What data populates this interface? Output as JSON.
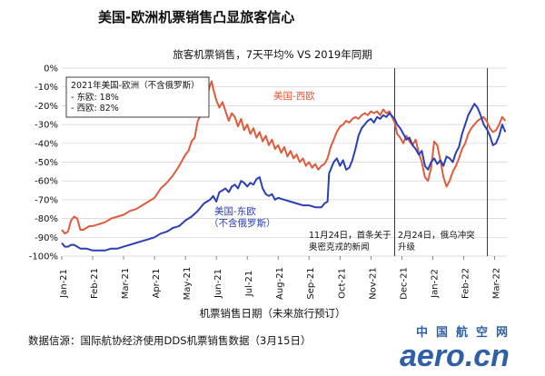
{
  "header": {
    "title": "美国-欧洲机票销售凸显旅客信心",
    "subtitle": "旅客机票销售，7天平均% VS 2019年同期"
  },
  "axis": {
    "xlabel": "机票销售日期（未来旅行预订）"
  },
  "legend_box": {
    "title": "2021年美国-欧洲（不含俄罗斯）",
    "lines": [
      "- 东欧:  18%",
      "- 西欧:  82%"
    ]
  },
  "annotations": {
    "west_label": "美国-西欧",
    "east_label_1": "美国-东欧",
    "east_label_2": "（不含俄罗斯）",
    "nov24_1": "11月24日，首条关于",
    "nov24_2": "奥密克戎的新闻",
    "feb24_1": "2月24日，俄乌冲突",
    "feb24_2": "升级"
  },
  "footer": {
    "source": "数据信源：国际航协经济使用DDS机票销售数据（3月15日）"
  },
  "logo": {
    "cn": "中国航空网",
    "en": "aero.cn"
  },
  "colors": {
    "west": "#e05a3c",
    "east": "#2b3fb5",
    "grid": "#d0d0d0",
    "event_line": "#333333"
  },
  "chart_data": {
    "type": "line",
    "x_tick_labels": [
      "Jan-21",
      "Feb-21",
      "Mar-21",
      "Apr-21",
      "May-21",
      "Jun-21",
      "Jul-21",
      "Aug-21",
      "Sep-21",
      "Oct-21",
      "Nov-21",
      "Dec-21",
      "Jan-22",
      "Feb-22",
      "Mar-22"
    ],
    "y_tick_labels": [
      "0%",
      "-10%",
      "-20%",
      "-30%",
      "-40%",
      "-50%",
      "-60%",
      "-70%",
      "-80%",
      "-90%",
      "-100%"
    ],
    "ylim": [
      -100,
      0
    ],
    "x_range_months": [
      0,
      14.4
    ],
    "event_lines_month": [
      10.77,
      13.77
    ],
    "series": [
      {
        "name": "美国-西欧",
        "color": "#e05a3c",
        "points": [
          [
            0.0,
            -86
          ],
          [
            0.1,
            -88
          ],
          [
            0.2,
            -87
          ],
          [
            0.3,
            -81
          ],
          [
            0.4,
            -79
          ],
          [
            0.5,
            -80
          ],
          [
            0.6,
            -86
          ],
          [
            0.7,
            -86
          ],
          [
            0.8,
            -85
          ],
          [
            0.9,
            -84
          ],
          [
            1.0,
            -84
          ],
          [
            1.2,
            -83
          ],
          [
            1.4,
            -82
          ],
          [
            1.6,
            -80
          ],
          [
            1.8,
            -79
          ],
          [
            2.0,
            -78
          ],
          [
            2.2,
            -76
          ],
          [
            2.4,
            -75
          ],
          [
            2.6,
            -73
          ],
          [
            2.8,
            -71
          ],
          [
            3.0,
            -69
          ],
          [
            3.2,
            -64
          ],
          [
            3.4,
            -61
          ],
          [
            3.6,
            -57
          ],
          [
            3.8,
            -52
          ],
          [
            4.0,
            -46
          ],
          [
            4.1,
            -44
          ],
          [
            4.2,
            -39
          ],
          [
            4.3,
            -37
          ],
          [
            4.4,
            -28
          ],
          [
            4.5,
            -25
          ],
          [
            4.6,
            -20
          ],
          [
            4.7,
            -15
          ],
          [
            4.8,
            -9
          ],
          [
            4.85,
            -7
          ],
          [
            4.9,
            -11
          ],
          [
            5.0,
            -17
          ],
          [
            5.1,
            -21
          ],
          [
            5.2,
            -18
          ],
          [
            5.3,
            -23
          ],
          [
            5.4,
            -28
          ],
          [
            5.5,
            -24
          ],
          [
            5.6,
            -26
          ],
          [
            5.7,
            -31
          ],
          [
            5.8,
            -27
          ],
          [
            5.9,
            -33
          ],
          [
            6.0,
            -30
          ],
          [
            6.1,
            -35
          ],
          [
            6.2,
            -32
          ],
          [
            6.3,
            -37
          ],
          [
            6.4,
            -34
          ],
          [
            6.5,
            -39
          ],
          [
            6.6,
            -36
          ],
          [
            6.7,
            -41
          ],
          [
            6.8,
            -38
          ],
          [
            6.9,
            -43
          ],
          [
            7.0,
            -41
          ],
          [
            7.1,
            -45
          ],
          [
            7.2,
            -42
          ],
          [
            7.3,
            -47
          ],
          [
            7.4,
            -44
          ],
          [
            7.5,
            -48
          ],
          [
            7.6,
            -46
          ],
          [
            7.7,
            -50
          ],
          [
            7.8,
            -48
          ],
          [
            7.9,
            -52
          ],
          [
            8.0,
            -50
          ],
          [
            8.1,
            -53
          ],
          [
            8.2,
            -51
          ],
          [
            8.3,
            -54
          ],
          [
            8.4,
            -52
          ],
          [
            8.5,
            -51
          ],
          [
            8.6,
            -48
          ],
          [
            8.7,
            -42
          ],
          [
            8.8,
            -38
          ],
          [
            8.9,
            -34
          ],
          [
            9.0,
            -31
          ],
          [
            9.1,
            -30
          ],
          [
            9.2,
            -28
          ],
          [
            9.3,
            -29
          ],
          [
            9.4,
            -27
          ],
          [
            9.5,
            -26
          ],
          [
            9.6,
            -27
          ],
          [
            9.7,
            -25
          ],
          [
            9.8,
            -24
          ],
          [
            9.9,
            -25
          ],
          [
            10.0,
            -23
          ],
          [
            10.1,
            -24
          ],
          [
            10.2,
            -23
          ],
          [
            10.3,
            -25
          ],
          [
            10.4,
            -22
          ],
          [
            10.5,
            -24
          ],
          [
            10.6,
            -23
          ],
          [
            10.77,
            -29
          ],
          [
            10.85,
            -35
          ],
          [
            10.95,
            -37
          ],
          [
            11.05,
            -40
          ],
          [
            11.15,
            -36
          ],
          [
            11.25,
            -39
          ],
          [
            11.35,
            -41
          ],
          [
            11.45,
            -38
          ],
          [
            11.55,
            -45
          ],
          [
            11.65,
            -50
          ],
          [
            11.75,
            -58
          ],
          [
            11.85,
            -60
          ],
          [
            11.95,
            -53
          ],
          [
            12.05,
            -39
          ],
          [
            12.15,
            -41
          ],
          [
            12.25,
            -49
          ],
          [
            12.35,
            -58
          ],
          [
            12.45,
            -63
          ],
          [
            12.55,
            -60
          ],
          [
            12.65,
            -55
          ],
          [
            12.75,
            -52
          ],
          [
            12.85,
            -48
          ],
          [
            12.95,
            -43
          ],
          [
            13.05,
            -40
          ],
          [
            13.15,
            -35
          ],
          [
            13.25,
            -32
          ],
          [
            13.35,
            -30
          ],
          [
            13.45,
            -28
          ],
          [
            13.55,
            -27
          ],
          [
            13.65,
            -26
          ],
          [
            13.77,
            -29
          ],
          [
            13.85,
            -32
          ],
          [
            13.95,
            -34
          ],
          [
            14.05,
            -33
          ],
          [
            14.15,
            -30
          ],
          [
            14.25,
            -26
          ],
          [
            14.35,
            -28
          ]
        ]
      },
      {
        "name": "美国-东欧（不含俄罗斯）",
        "color": "#2b3fb5",
        "points": [
          [
            0.0,
            -93
          ],
          [
            0.1,
            -95
          ],
          [
            0.2,
            -95
          ],
          [
            0.3,
            -94
          ],
          [
            0.4,
            -94
          ],
          [
            0.5,
            -95
          ],
          [
            0.6,
            -96
          ],
          [
            0.8,
            -96
          ],
          [
            1.0,
            -97
          ],
          [
            1.2,
            -97
          ],
          [
            1.4,
            -97
          ],
          [
            1.6,
            -96
          ],
          [
            1.8,
            -96
          ],
          [
            2.0,
            -95
          ],
          [
            2.2,
            -94
          ],
          [
            2.4,
            -93
          ],
          [
            2.6,
            -92
          ],
          [
            2.8,
            -91
          ],
          [
            3.0,
            -90
          ],
          [
            3.2,
            -88
          ],
          [
            3.4,
            -87
          ],
          [
            3.6,
            -85
          ],
          [
            3.8,
            -84
          ],
          [
            4.0,
            -81
          ],
          [
            4.2,
            -79
          ],
          [
            4.4,
            -76
          ],
          [
            4.6,
            -72
          ],
          [
            4.8,
            -70
          ],
          [
            4.9,
            -68
          ],
          [
            5.0,
            -71
          ],
          [
            5.1,
            -66
          ],
          [
            5.2,
            -65
          ],
          [
            5.3,
            -64
          ],
          [
            5.4,
            -66
          ],
          [
            5.5,
            -63
          ],
          [
            5.6,
            -62
          ],
          [
            5.7,
            -64
          ],
          [
            5.8,
            -60
          ],
          [
            5.9,
            -61
          ],
          [
            6.0,
            -63
          ],
          [
            6.1,
            -61
          ],
          [
            6.2,
            -62
          ],
          [
            6.3,
            -59
          ],
          [
            6.4,
            -58
          ],
          [
            6.5,
            -64
          ],
          [
            6.6,
            -67
          ],
          [
            6.7,
            -68
          ],
          [
            6.8,
            -67
          ],
          [
            6.9,
            -70
          ],
          [
            7.0,
            -69
          ],
          [
            7.2,
            -70
          ],
          [
            7.4,
            -71
          ],
          [
            7.6,
            -72
          ],
          [
            7.8,
            -73
          ],
          [
            8.0,
            -73
          ],
          [
            8.2,
            -74
          ],
          [
            8.4,
            -74
          ],
          [
            8.5,
            -72
          ],
          [
            8.6,
            -71
          ],
          [
            8.65,
            -56
          ],
          [
            8.8,
            -50
          ],
          [
            8.9,
            -48
          ],
          [
            9.0,
            -52
          ],
          [
            9.1,
            -49
          ],
          [
            9.2,
            -54
          ],
          [
            9.3,
            -53
          ],
          [
            9.4,
            -49
          ],
          [
            9.5,
            -43
          ],
          [
            9.6,
            -36
          ],
          [
            9.7,
            -32
          ],
          [
            9.8,
            -30
          ],
          [
            9.9,
            -28
          ],
          [
            10.0,
            -27
          ],
          [
            10.1,
            -29
          ],
          [
            10.2,
            -26
          ],
          [
            10.3,
            -27
          ],
          [
            10.4,
            -25
          ],
          [
            10.5,
            -26
          ],
          [
            10.6,
            -24
          ],
          [
            10.77,
            -27
          ],
          [
            10.85,
            -30
          ],
          [
            10.95,
            -32
          ],
          [
            11.05,
            -35
          ],
          [
            11.15,
            -38
          ],
          [
            11.25,
            -37
          ],
          [
            11.35,
            -41
          ],
          [
            11.45,
            -43
          ],
          [
            11.55,
            -46
          ],
          [
            11.65,
            -44
          ],
          [
            11.75,
            -52
          ],
          [
            11.85,
            -54
          ],
          [
            11.95,
            -50
          ],
          [
            12.05,
            -48
          ],
          [
            12.15,
            -51
          ],
          [
            12.25,
            -49
          ],
          [
            12.35,
            -52
          ],
          [
            12.45,
            -47
          ],
          [
            12.55,
            -48
          ],
          [
            12.65,
            -50
          ],
          [
            12.75,
            -45
          ],
          [
            12.85,
            -42
          ],
          [
            12.95,
            -35
          ],
          [
            13.05,
            -30
          ],
          [
            13.15,
            -25
          ],
          [
            13.25,
            -22
          ],
          [
            13.35,
            -19
          ],
          [
            13.45,
            -21
          ],
          [
            13.55,
            -25
          ],
          [
            13.65,
            -30
          ],
          [
            13.77,
            -33
          ],
          [
            13.85,
            -36
          ],
          [
            13.95,
            -41
          ],
          [
            14.05,
            -40
          ],
          [
            14.15,
            -36
          ],
          [
            14.25,
            -30
          ],
          [
            14.35,
            -34
          ]
        ]
      }
    ]
  }
}
